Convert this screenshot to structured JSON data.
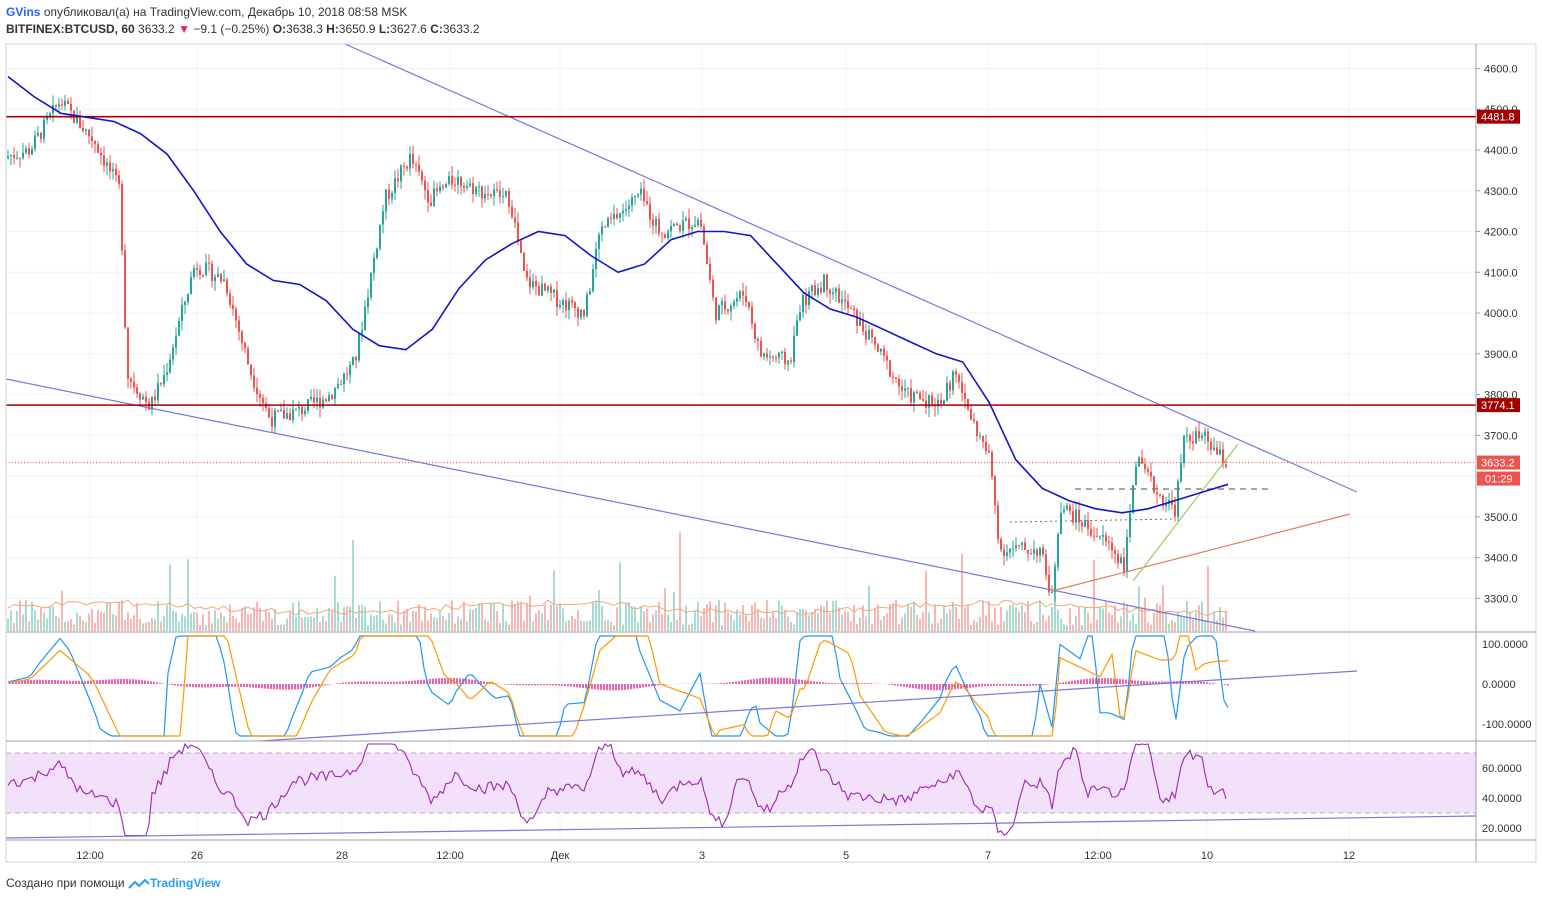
{
  "header": {
    "author": "GVins",
    "published_text": "опубликовал(а) на TradingView.com, Декабрь 10, 2018 08:58 MSK",
    "symbol": "BITFINEX:BTCUSD, 60",
    "last": "3633.2",
    "change": "−9.1 (−0.25%)",
    "o_label": "O:",
    "o_value": "3638.3",
    "h_label": "H:",
    "h_value": "3650.9",
    "l_label": "L:",
    "l_value": "3627.6",
    "c_label": "C:",
    "c_value": "3633.2"
  },
  "footer": {
    "created_text": "Создано при помощи",
    "brand": "TradingView"
  },
  "colors": {
    "up": "#26a69a",
    "down": "#ef5350",
    "ma": "#1414c8",
    "resistance": "#a00000",
    "trendline": "#7878dc",
    "rsi_band": "#f3e0fb",
    "rsi_line": "#9c27b0",
    "macd": "#2196f3",
    "signal": "#ff9800",
    "hist": "#e91e8c"
  },
  "chart_data": [
    {
      "type": "candlestick",
      "name_text": "BITFINEX:BTCUSD, 60",
      "ylim": [
        3220,
        4660
      ],
      "y_ticks": [
        "4600.0",
        "4500.0",
        "4400.0",
        "4300.0",
        "4200.0",
        "4100.0",
        "4000.0",
        "3900.0",
        "3800.0",
        "3700.0",
        "3600.0",
        "3500.0",
        "3400.0",
        "3300.0"
      ],
      "y_tick_values": [
        4600,
        4500,
        4400,
        4300,
        4200,
        4100,
        4000,
        3900,
        3800,
        3700,
        3600,
        3500,
        3400,
        3300
      ],
      "x_ticks": [
        "12:00",
        "26",
        "28",
        "12:00",
        "Дек",
        "3",
        "5",
        "7",
        "12:00",
        "10",
        "12"
      ],
      "levels": [
        {
          "label": "4481.8",
          "value": 4481.8
        },
        {
          "label": "3774.1",
          "value": 3774.1
        }
      ],
      "last_price": {
        "label": "3633.2",
        "value": 3633.2,
        "countdown": "01:29"
      },
      "ma_values": [
        4580,
        4530,
        4490,
        4480,
        4470,
        4440,
        4390,
        4300,
        4200,
        4120,
        4080,
        4070,
        4030,
        3960,
        3920,
        3910,
        3960,
        4060,
        4130,
        4170,
        4200,
        4190,
        4140,
        4100,
        4120,
        4180,
        4200,
        4200,
        4190,
        4120,
        4050,
        4010,
        3990,
        3960,
        3930,
        3900,
        3880,
        3780,
        3640,
        3570,
        3540,
        3520,
        3510,
        3520,
        3540,
        3560,
        3580
      ],
      "ohlc_description": "hourly candles, Nov 25 – Dec 10 2018"
    },
    {
      "type": "line",
      "indicator": "MACD",
      "ylim": [
        -140,
        130
      ],
      "y_ticks": [
        "100.0000",
        "0.0000",
        "-100.0000"
      ],
      "y_tick_values": [
        100,
        0,
        -100
      ]
    },
    {
      "type": "line",
      "indicator": "RSI",
      "ylim": [
        12,
        78
      ],
      "band": [
        30,
        70
      ],
      "y_ticks": [
        "60.0000",
        "40.0000",
        "20.0000"
      ],
      "y_tick_values": [
        60,
        40,
        20
      ]
    }
  ]
}
